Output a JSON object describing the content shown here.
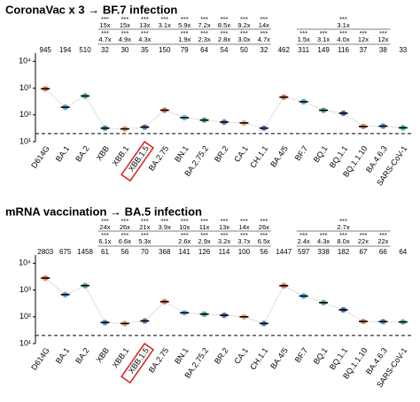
{
  "chart_data": [
    {
      "type": "dot",
      "title": "CoronaVac x 3 → BF.7 infection",
      "categories": [
        "D614G",
        "BA.1",
        "BA.2",
        "XBB",
        "XBB.1",
        "XBB.1.5",
        "BA.2.75",
        "BN.1",
        "BA.2.75.2",
        "BR.2",
        "CA.1",
        "CH.1.1",
        "BA.4/5",
        "BF.7",
        "BQ.1",
        "BQ.1.1",
        "BQ.1.1.10",
        "BA.4.6.3",
        "SARS-CoV-1"
      ],
      "values": [
        945,
        194,
        510,
        32,
        30,
        35,
        150,
        79,
        64,
        54,
        50,
        32,
        462,
        311,
        149,
        116,
        37,
        38,
        33
      ],
      "stars_top": [
        null,
        null,
        null,
        "***",
        "***",
        "***",
        "***",
        "***",
        "***",
        "***",
        "***",
        "***",
        null,
        null,
        null,
        "***",
        null,
        null,
        null
      ],
      "fold_top": [
        null,
        null,
        null,
        "15x",
        "15x",
        "13x",
        "3.1x",
        "5.9x",
        "7.2x",
        "8.5x",
        "9.2x",
        "14x",
        null,
        null,
        null,
        "3.1x",
        null,
        null,
        null
      ],
      "stars_second": [
        null,
        null,
        null,
        "***",
        "***",
        "***",
        null,
        "***",
        "***",
        "***",
        "***",
        "***",
        null,
        "***",
        "***",
        "***",
        "***",
        "***",
        null
      ],
      "fold_second": [
        null,
        null,
        null,
        "4.7x",
        "4.9x",
        "4.3x",
        null,
        "1.9x",
        "2.3x",
        "2.8x",
        "3.0x",
        "4.7x",
        null,
        "1.5x",
        "3.1x",
        "4.0x",
        "12x",
        "12x",
        null
      ],
      "colors": [
        "#e0703f",
        "#3b9fd6",
        "#35a878",
        "#2b7ea6",
        "#e58a5c",
        "#3d6eb0",
        "#e0603b",
        "#4ab2d2",
        "#35a082",
        "#3a6cb0",
        "#e89f52",
        "#4a70b8",
        "#e0603b",
        "#3a9ad0",
        "#35a080",
        "#2b5a9a",
        "#e07040",
        "#3a80c0",
        "#3aaa9a"
      ],
      "highlight": 5,
      "threshold": 20,
      "ylim": [
        10,
        15000
      ],
      "yticks": [
        {
          "value": 10,
          "label": "10¹"
        },
        {
          "value": 100,
          "label": "10²"
        },
        {
          "value": 1000,
          "label": "10³"
        },
        {
          "value": 10000,
          "label": "10⁴"
        }
      ],
      "log": true
    },
    {
      "type": "dot",
      "title": "mRNA vaccination → BA.5 infection",
      "categories": [
        "D614G",
        "BA.1",
        "BA.2",
        "XBB",
        "XBB.1",
        "XBB.1.5",
        "BA.2.75",
        "BN.1",
        "BA.2.75.2",
        "BR.2",
        "CA.1",
        "CH.1.1",
        "BA.4/5",
        "BF.7",
        "BQ.1",
        "BQ.1.1",
        "BQ.1.1.10",
        "BA.4.6.3",
        "SARS-CoV-1"
      ],
      "values": [
        2803,
        675,
        1458,
        61,
        56,
        70,
        368,
        141,
        126,
        114,
        100,
        56,
        1447,
        597,
        338,
        182,
        67,
        66,
        64
      ],
      "stars_top": [
        null,
        null,
        null,
        "***",
        "***",
        "***",
        "***",
        "***",
        "***",
        "***",
        "***",
        "***",
        null,
        null,
        null,
        "***",
        null,
        null,
        null
      ],
      "fold_top": [
        null,
        null,
        null,
        "24x",
        "26x",
        "21x",
        "3.9x",
        "10x",
        "11x",
        "13x",
        "14x",
        "26x",
        null,
        null,
        null,
        "2.7x",
        null,
        null,
        null
      ],
      "stars_second": [
        null,
        null,
        null,
        "***",
        "***",
        "***",
        null,
        "***",
        "***",
        "***",
        "***",
        "***",
        null,
        "***",
        "***",
        "***",
        "***",
        "***",
        null
      ],
      "fold_second": [
        null,
        null,
        null,
        "6.1x",
        "6.6x",
        "5.3x",
        null,
        "2.6x",
        "2.9x",
        "3.2x",
        "3.7x",
        "6.5x",
        null,
        "2.4x",
        "4.3x",
        "8.0x",
        "22x",
        "22x",
        null
      ],
      "colors": [
        "#e0703f",
        "#3b9fd6",
        "#35a878",
        "#2b7ea6",
        "#e58a5c",
        "#3d6eb0",
        "#e0603b",
        "#4ab2d2",
        "#35a082",
        "#3a6cb0",
        "#e89f52",
        "#4a70b8",
        "#e0603b",
        "#3a9ad0",
        "#35a080",
        "#2b5a9a",
        "#e07040",
        "#3a80c0",
        "#3aaa9a"
      ],
      "highlight": 5,
      "threshold": 20,
      "ylim": [
        10,
        15000
      ],
      "yticks": [
        {
          "value": 10,
          "label": "10¹"
        },
        {
          "value": 100,
          "label": "10²"
        },
        {
          "value": 1000,
          "label": "10³"
        },
        {
          "value": 10000,
          "label": "10⁴"
        }
      ],
      "log": true
    }
  ]
}
